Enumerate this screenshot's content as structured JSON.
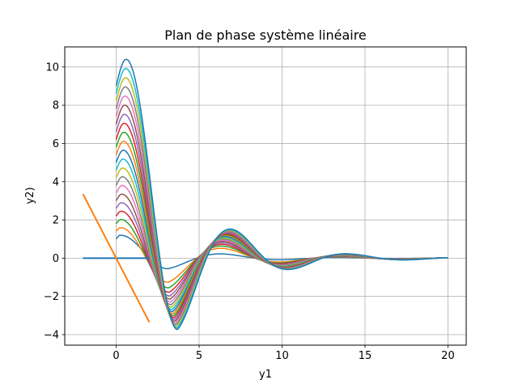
{
  "chart_data": {
    "type": "line",
    "title": "Plan de phase système linéaire",
    "xlabel": "y1",
    "ylabel": "y2)",
    "xlim": [
      -3.1,
      21.1
    ],
    "ylim": [
      -4.55,
      11.05
    ],
    "xticks": [
      0,
      5,
      10,
      15,
      20
    ],
    "yticks": [
      -4,
      -2,
      0,
      2,
      4,
      6,
      8,
      10
    ],
    "xtick_labels": [
      "0",
      "5",
      "10",
      "15",
      "20"
    ],
    "ytick_labels": [
      "−4",
      "−2",
      "0",
      "2",
      "4",
      "6",
      "8",
      "10"
    ],
    "grid": true,
    "legend": "none",
    "palette": [
      "#1f77b4",
      "#ff7f0e",
      "#2ca02c",
      "#d62728",
      "#9467bd",
      "#8c564b",
      "#e377c2",
      "#7f7f7f",
      "#bcbd22",
      "#17becf"
    ],
    "trajectory_family": {
      "description_free": true,
      "x_range": [
        0,
        20
      ],
      "start_amplitudes": [
        1.0,
        1.4,
        1.8,
        2.2,
        2.6,
        3.0,
        3.4,
        3.8,
        4.2,
        4.6,
        5.0,
        5.4,
        5.8,
        6.2,
        6.6,
        7.0,
        7.4,
        7.8,
        8.2,
        8.6,
        9.0
      ],
      "peak_y_max": 10.4,
      "trough_y_min": -3.8,
      "second_peak_y": 1.4,
      "final_y": 0.0
    },
    "series": [
      {
        "color": "#1f77b4",
        "x": [
          -2,
          2
        ],
        "y": [
          0,
          0
        ]
      },
      {
        "color": "#ff7f0e",
        "x": [
          -2,
          2
        ],
        "y": [
          3.35,
          -3.35
        ]
      }
    ]
  }
}
